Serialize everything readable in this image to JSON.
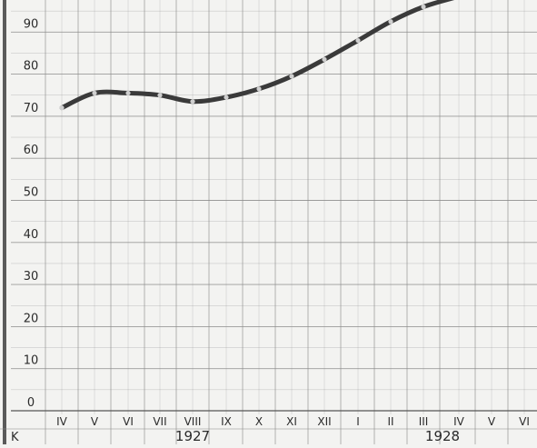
{
  "chart_data": {
    "type": "line",
    "title": "",
    "xlabel": "",
    "ylabel": "",
    "ylim": [
      0,
      100
    ],
    "y_ticks": [
      0,
      10,
      20,
      30,
      40,
      50,
      60,
      70,
      80,
      90
    ],
    "y_tick_labels": [
      "0",
      "10",
      "20",
      "30",
      "40",
      "50",
      "60",
      "70",
      "80",
      "90"
    ],
    "x": [
      "IV",
      "V",
      "VI",
      "VII",
      "VIII",
      "IX",
      "X",
      "XI",
      "XII",
      "I",
      "II",
      "III",
      "IV",
      "V",
      "VI"
    ],
    "year_labels": [
      {
        "label": "1927",
        "first": "IV",
        "last": "XII"
      },
      {
        "label": "1928",
        "first": "I",
        "last": "VI"
      }
    ],
    "corner_label": "K",
    "series": [
      {
        "values": [
          72,
          75.5,
          75.5,
          75,
          73.5,
          74.5,
          76.5,
          79.5,
          83.5,
          88,
          92.5,
          96,
          98.5,
          101,
          null
        ]
      }
    ],
    "grid": true,
    "legend": "none",
    "colors": {
      "background": "#f3f3f1",
      "grid": "#8c8c8c",
      "left_border": "#5a5a5a",
      "line": "#3a3a3a",
      "marker": "#cfcfcf",
      "text": "#2a2a2a"
    }
  }
}
